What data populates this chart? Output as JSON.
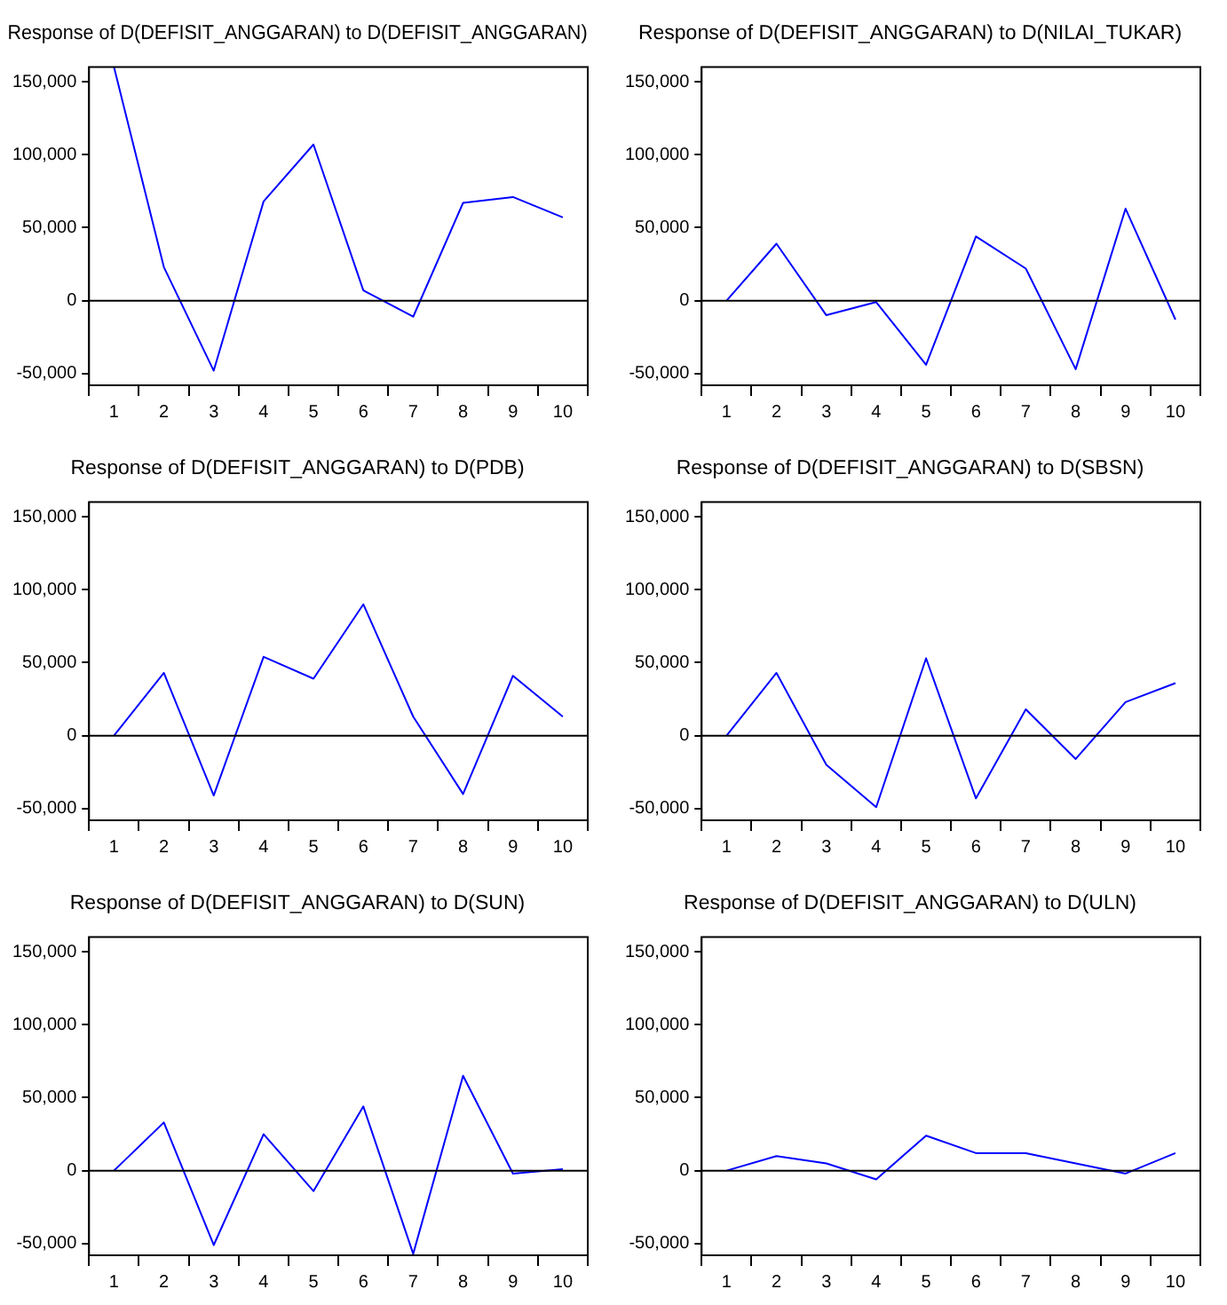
{
  "chart_data": [
    {
      "type": "line",
      "title": "Response of D(DEFISIT_ANGGARAN) to D(DEFISIT_ANGGARAN)",
      "categories": [
        "1",
        "2",
        "3",
        "4",
        "5",
        "6",
        "7",
        "8",
        "9",
        "10"
      ],
      "series": [
        {
          "color": "#0000ff",
          "values": [
            160000,
            23000,
            -48000,
            68000,
            107000,
            7000,
            -11000,
            67000,
            71000,
            57000
          ]
        }
      ],
      "ylim": [
        -58000,
        160000
      ],
      "yticks": [
        {
          "value": -50000,
          "label": "-50,000"
        },
        {
          "value": 0,
          "label": "0"
        },
        {
          "value": 50000,
          "label": "50,000"
        },
        {
          "value": 100000,
          "label": "100,000"
        },
        {
          "value": 150000,
          "label": "150,000"
        }
      ],
      "ref_lines": [
        {
          "axis": "y",
          "value": 0,
          "color": "#000000"
        }
      ],
      "grid": false,
      "legend": false,
      "marker": "none",
      "line_style": "solid"
    },
    {
      "type": "line",
      "title": "Response of D(DEFISIT_ANGGARAN) to D(NILAI_TUKAR)",
      "categories": [
        "1",
        "2",
        "3",
        "4",
        "5",
        "6",
        "7",
        "8",
        "9",
        "10"
      ],
      "series": [
        {
          "color": "#0000ff",
          "values": [
            0,
            39000,
            -10000,
            -1000,
            -44000,
            44000,
            22000,
            -47000,
            63000,
            -13000
          ]
        }
      ],
      "ylim": [
        -58000,
        160000
      ],
      "yticks": [
        {
          "value": -50000,
          "label": "-50,000"
        },
        {
          "value": 0,
          "label": "0"
        },
        {
          "value": 50000,
          "label": "50,000"
        },
        {
          "value": 100000,
          "label": "100,000"
        },
        {
          "value": 150000,
          "label": "150,000"
        }
      ],
      "ref_lines": [
        {
          "axis": "y",
          "value": 0,
          "color": "#000000"
        }
      ],
      "grid": false,
      "legend": false,
      "marker": "none",
      "line_style": "solid"
    },
    {
      "type": "line",
      "title": "Response of D(DEFISIT_ANGGARAN) to D(PDB)",
      "categories": [
        "1",
        "2",
        "3",
        "4",
        "5",
        "6",
        "7",
        "8",
        "9",
        "10"
      ],
      "series": [
        {
          "color": "#0000ff",
          "values": [
            0,
            43000,
            -41000,
            54000,
            39000,
            90000,
            13000,
            -40000,
            41000,
            13000
          ]
        }
      ],
      "ylim": [
        -58000,
        160000
      ],
      "yticks": [
        {
          "value": -50000,
          "label": "-50,000"
        },
        {
          "value": 0,
          "label": "0"
        },
        {
          "value": 50000,
          "label": "50,000"
        },
        {
          "value": 100000,
          "label": "100,000"
        },
        {
          "value": 150000,
          "label": "150,000"
        }
      ],
      "ref_lines": [
        {
          "axis": "y",
          "value": 0,
          "color": "#000000"
        }
      ],
      "grid": false,
      "legend": false,
      "marker": "none",
      "line_style": "solid"
    },
    {
      "type": "line",
      "title": "Response of D(DEFISIT_ANGGARAN) to D(SBSN)",
      "categories": [
        "1",
        "2",
        "3",
        "4",
        "5",
        "6",
        "7",
        "8",
        "9",
        "10"
      ],
      "series": [
        {
          "color": "#0000ff",
          "values": [
            0,
            43000,
            -20000,
            -49000,
            53000,
            -43000,
            18000,
            -16000,
            23000,
            36000
          ]
        }
      ],
      "ylim": [
        -58000,
        160000
      ],
      "yticks": [
        {
          "value": -50000,
          "label": "-50,000"
        },
        {
          "value": 0,
          "label": "0"
        },
        {
          "value": 50000,
          "label": "50,000"
        },
        {
          "value": 100000,
          "label": "100,000"
        },
        {
          "value": 150000,
          "label": "150,000"
        }
      ],
      "ref_lines": [
        {
          "axis": "y",
          "value": 0,
          "color": "#000000"
        }
      ],
      "grid": false,
      "legend": false,
      "marker": "none",
      "line_style": "solid"
    },
    {
      "type": "line",
      "title": "Response of D(DEFISIT_ANGGARAN) to D(SUN)",
      "categories": [
        "1",
        "2",
        "3",
        "4",
        "5",
        "6",
        "7",
        "8",
        "9",
        "10"
      ],
      "series": [
        {
          "color": "#0000ff",
          "values": [
            0,
            33000,
            -51000,
            25000,
            -14000,
            44000,
            -57000,
            65000,
            -2000,
            1000
          ]
        }
      ],
      "ylim": [
        -58000,
        160000
      ],
      "yticks": [
        {
          "value": -50000,
          "label": "-50,000"
        },
        {
          "value": 0,
          "label": "0"
        },
        {
          "value": 50000,
          "label": "50,000"
        },
        {
          "value": 100000,
          "label": "100,000"
        },
        {
          "value": 150000,
          "label": "150,000"
        }
      ],
      "ref_lines": [
        {
          "axis": "y",
          "value": 0,
          "color": "#000000"
        }
      ],
      "grid": false,
      "legend": false,
      "marker": "none",
      "line_style": "solid"
    },
    {
      "type": "line",
      "title": "Response of D(DEFISIT_ANGGARAN) to D(ULN)",
      "categories": [
        "1",
        "2",
        "3",
        "4",
        "5",
        "6",
        "7",
        "8",
        "9",
        "10"
      ],
      "series": [
        {
          "color": "#0000ff",
          "values": [
            0,
            10000,
            5000,
            -6000,
            24000,
            12000,
            12000,
            5000,
            -2000,
            12000
          ]
        }
      ],
      "ylim": [
        -58000,
        160000
      ],
      "yticks": [
        {
          "value": -50000,
          "label": "-50,000"
        },
        {
          "value": 0,
          "label": "0"
        },
        {
          "value": 50000,
          "label": "50,000"
        },
        {
          "value": 100000,
          "label": "100,000"
        },
        {
          "value": 150000,
          "label": "150,000"
        }
      ],
      "ref_lines": [
        {
          "axis": "y",
          "value": 0,
          "color": "#000000"
        }
      ],
      "grid": false,
      "legend": false,
      "marker": "none",
      "line_style": "solid"
    }
  ]
}
